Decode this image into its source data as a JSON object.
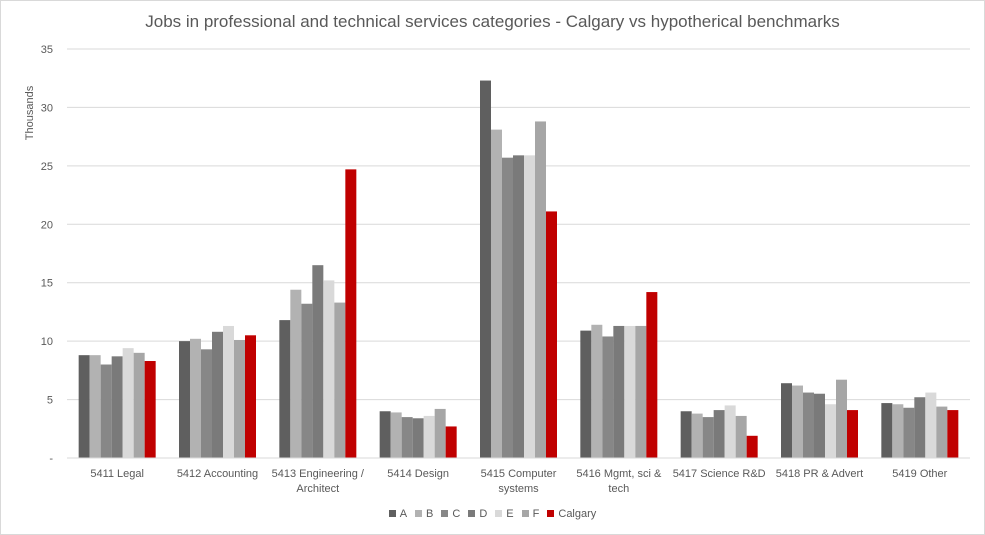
{
  "chart_data": {
    "type": "bar",
    "title": "Jobs in professional and technical services categories - Calgary vs hypotherical benchmarks",
    "xlabel": "",
    "ylabel": "Thousands",
    "ylim": [
      0,
      35
    ],
    "yticks": [
      0,
      5,
      10,
      15,
      20,
      25,
      30,
      35
    ],
    "ytick_labels": [
      "-",
      "5",
      "10",
      "15",
      "20",
      "25",
      "30",
      "35"
    ],
    "grid": true,
    "legend_position": "bottom",
    "categories": [
      [
        "5411 Legal"
      ],
      [
        "5412 Accounting"
      ],
      [
        "5413 Engineering /",
        "Architect"
      ],
      [
        "5414 Design"
      ],
      [
        "5415 Computer",
        "systems"
      ],
      [
        "5416 Mgmt, sci &",
        "tech"
      ],
      [
        "5417 Science R&D"
      ],
      [
        "5418 PR & Advert"
      ],
      [
        "5419 Other"
      ]
    ],
    "series": [
      {
        "name": "A",
        "color": "#5f5f5f",
        "values": [
          8.8,
          10.0,
          11.8,
          4.0,
          32.3,
          10.9,
          4.0,
          6.4,
          4.7
        ]
      },
      {
        "name": "B",
        "color": "#b2b2b2",
        "values": [
          8.8,
          10.2,
          14.4,
          3.9,
          28.1,
          11.4,
          3.8,
          6.2,
          4.6
        ]
      },
      {
        "name": "C",
        "color": "#878787",
        "values": [
          8.0,
          9.3,
          13.2,
          3.5,
          25.7,
          10.4,
          3.5,
          5.6,
          4.3
        ]
      },
      {
        "name": "D",
        "color": "#7a7a7a",
        "values": [
          8.7,
          10.8,
          16.5,
          3.4,
          25.9,
          11.3,
          4.1,
          5.5,
          5.2
        ]
      },
      {
        "name": "E",
        "color": "#d9d9d9",
        "values": [
          9.4,
          11.3,
          15.2,
          3.6,
          25.9,
          11.3,
          4.5,
          4.6,
          5.6
        ]
      },
      {
        "name": "F",
        "color": "#a6a6a6",
        "values": [
          9.0,
          10.1,
          13.3,
          4.2,
          28.8,
          11.3,
          3.6,
          6.7,
          4.4
        ]
      },
      {
        "name": "Calgary",
        "color": "#c00000",
        "values": [
          8.3,
          10.5,
          24.7,
          2.7,
          21.1,
          14.2,
          1.9,
          4.1,
          4.1
        ]
      }
    ]
  }
}
